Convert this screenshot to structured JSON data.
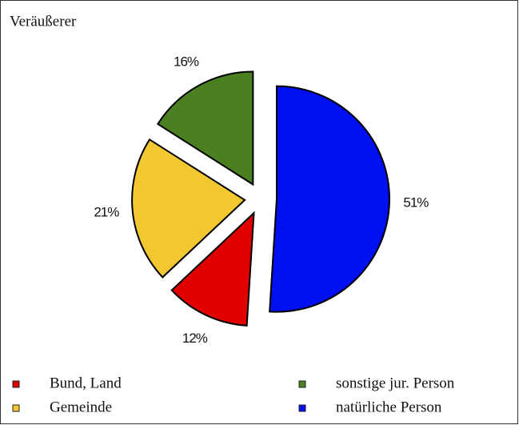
{
  "chart_data": {
    "type": "pie",
    "title": "Veräußerer",
    "series": [
      {
        "name": "Bund, Land",
        "color": "#e00000",
        "values": [
          12
        ],
        "value_labels": [
          "12%"
        ]
      },
      {
        "name": "Gemeinde",
        "color": "#f2c830",
        "values": [
          21
        ],
        "value_labels": [
          "21%"
        ]
      },
      {
        "name": "sonstige jur. Person",
        "color": "#4a8020",
        "values": [
          16
        ],
        "value_labels": [
          "16%"
        ]
      },
      {
        "name": "natürliche Person",
        "color": "#0010f0",
        "values": [
          51
        ],
        "value_labels": [
          "51%"
        ]
      }
    ],
    "legend": "bottom"
  }
}
